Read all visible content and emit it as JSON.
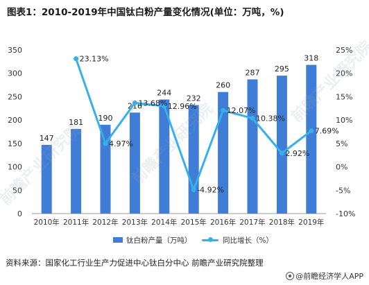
{
  "title": "图表1：2010-2019年中国钛白粉产量变化情况(单位：万吨，%)",
  "chart_data": {
    "type": "bar",
    "categories": [
      "2010年",
      "2011年",
      "2012年",
      "2013年",
      "2014年",
      "2015年",
      "2016年",
      "2017年",
      "2018年",
      "2019年"
    ],
    "series": [
      {
        "name": "钛白粉产量（万吨）",
        "type": "bar",
        "axis": "left",
        "values": [
          147,
          181,
          190,
          216,
          244,
          232,
          260,
          287,
          295,
          318
        ],
        "labels": [
          "147",
          "181",
          "190",
          "216",
          "244",
          "232",
          "260",
          "287",
          "295",
          "318"
        ]
      },
      {
        "name": "同比增长（%）",
        "type": "line",
        "axis": "right",
        "values": [
          null,
          23.13,
          4.97,
          13.68,
          12.96,
          -4.92,
          12.07,
          10.38,
          2.92,
          7.69
        ],
        "labels": [
          "",
          "23.13%",
          "4.97%",
          "13.68%",
          "12.96%",
          "-4.92%",
          "12.07%",
          "10.38%",
          "2.92%",
          "7.69%"
        ]
      }
    ],
    "y_left": {
      "range": [
        0,
        350
      ],
      "ticks": [
        "0",
        "50",
        "100",
        "150",
        "200",
        "250",
        "300",
        "350"
      ]
    },
    "y_right": {
      "range": [
        -10,
        25
      ],
      "ticks": [
        "-10%",
        "-5%",
        "0%",
        "5%",
        "10%",
        "15%",
        "20%",
        "25%"
      ]
    },
    "legend_position": "bottom",
    "grid": false,
    "colors": {
      "bar": "#3f7dd6",
      "line": "#35b1ea"
    }
  },
  "legend": {
    "bar_label": "钛白粉产量（万吨）",
    "line_label": "同比增长（%）"
  },
  "source": "资料来源：国家化工行业生产力促进中心钛白分中心 前瞻产业研究院整理",
  "brand": "@前瞻经济学人APP",
  "watermark": "前瞻产业研究院"
}
